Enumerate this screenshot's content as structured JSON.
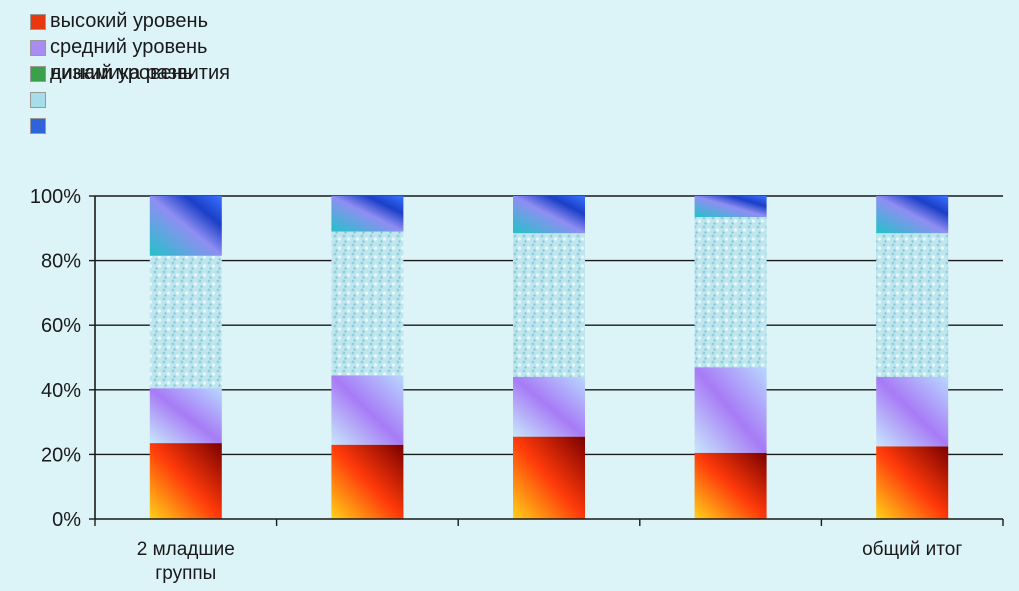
{
  "chart_data": {
    "type": "bar",
    "stacked": true,
    "percent": true,
    "ylim": [
      0,
      100
    ],
    "yticks": [
      "0%",
      "20%",
      "40%",
      "60%",
      "80%",
      "100%"
    ],
    "grid": true,
    "legend_position": "top-left",
    "categories": [
      [
        "2 младшие",
        "группы"
      ],
      [
        ""
      ],
      [
        ""
      ],
      [
        ""
      ],
      [
        "общий итог"
      ]
    ],
    "series": [
      {
        "name": "высокий уровень",
        "color": "#e8380f",
        "values": [
          23.5,
          23,
          25.5,
          20.5,
          22.5
        ]
      },
      {
        "name": "средний уровень",
        "color": "#a98cf2",
        "values": [
          17,
          21.5,
          18.5,
          26.5,
          21.5
        ]
      },
      {
        "name": "низкий уровень",
        "color": "#3aa04a",
        "values": [
          0,
          0,
          0,
          0,
          0
        ]
      },
      {
        "name": "",
        "color": "#a6dde8",
        "values": [
          41,
          44.5,
          44.5,
          46.5,
          44.5
        ]
      },
      {
        "name": "",
        "color": "#2f63d9",
        "values": [
          18.5,
          11,
          11.5,
          6.5,
          11.5
        ]
      }
    ]
  },
  "legend": [
    {
      "label": "высокий уровень",
      "color": "#e8380f"
    },
    {
      "label": "средний уровень",
      "color": "#a98cf2"
    },
    {
      "label": "низкий уровень",
      "color": "#3aa04a"
    },
    {
      "label": "динамика развития",
      "color": "#3aa04a",
      "overlap": true
    },
    {
      "label": "",
      "color": "#a6dde8"
    },
    {
      "label": "",
      "color": "#2f63d9"
    }
  ]
}
